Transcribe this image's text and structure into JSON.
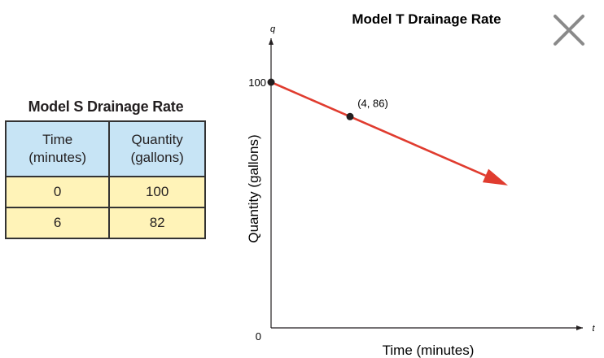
{
  "table": {
    "title": "Model S Drainage Rate",
    "headers": [
      {
        "line1": "Time",
        "line2": "(minutes)"
      },
      {
        "line1": "Quantity",
        "line2": "(gallons)"
      }
    ],
    "rows": [
      [
        "0",
        "100"
      ],
      [
        "6",
        "82"
      ]
    ]
  },
  "chart_data": {
    "type": "line",
    "title": "Model T Drainage Rate",
    "xlabel": "Time (minutes)",
    "ylabel": "Quantity (gallons)",
    "x_axis_letter": "t",
    "y_axis_letter": "q",
    "ytick_labels": [
      "0",
      "100"
    ],
    "grid": false,
    "series": [
      {
        "color": "#e03c2f",
        "points": [
          {
            "x": 0,
            "y": 100
          },
          {
            "x": 4,
            "y": 86
          }
        ]
      }
    ],
    "annotations": [
      {
        "x": 4,
        "y": 86,
        "text": "(4, 86)"
      }
    ],
    "xlim": [
      0,
      8
    ],
    "ylim": [
      0,
      110
    ]
  },
  "close_icon": "close-icon"
}
